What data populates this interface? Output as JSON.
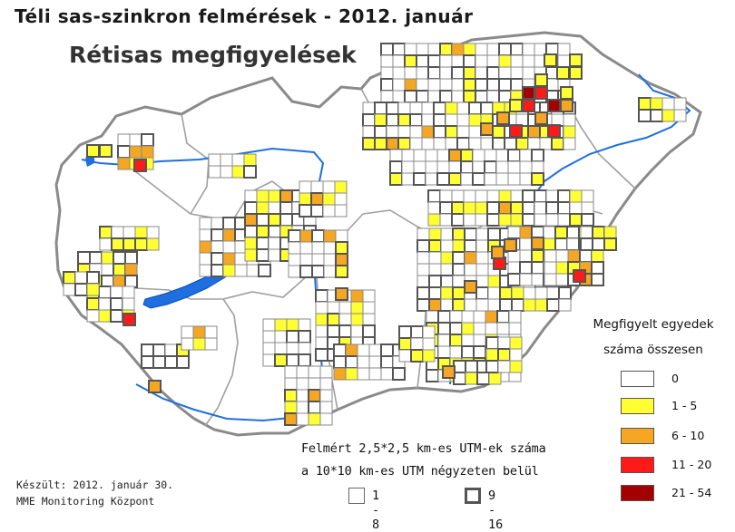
{
  "header": {
    "title": "Téli sas-szinkron felmérések - 2012. január",
    "subtitle": "Rétisas megfigyelések"
  },
  "legend": {
    "title_line1": "Megfigyelt egyedek",
    "title_line2": "száma összesen",
    "items": [
      {
        "label": "0",
        "color": "#ffffff"
      },
      {
        "label": "1 - 5",
        "color": "#ffff33"
      },
      {
        "label": "6 - 10",
        "color": "#f5a623"
      },
      {
        "label": "11 - 20",
        "color": "#ff1a1a"
      },
      {
        "label": "21 - 54",
        "color": "#a30000"
      }
    ]
  },
  "sampling_note": {
    "line1": "Felmért 2,5*2,5 km-es UTM-ek száma",
    "line2": "a 10*10 km-es UTM négyzeten belül",
    "items": [
      {
        "label": "1 - 8",
        "style": "thin"
      },
      {
        "label": "9 - 16",
        "style": "thick"
      }
    ]
  },
  "credit": {
    "line1": "Készült: 2012. január 30.",
    "line2": "MME Monitoring Központ"
  },
  "colors": {
    "border": "#8a8a8a",
    "region_border": "#9a9a9a",
    "water": "#1f6fe0",
    "grid": "#888888"
  }
}
